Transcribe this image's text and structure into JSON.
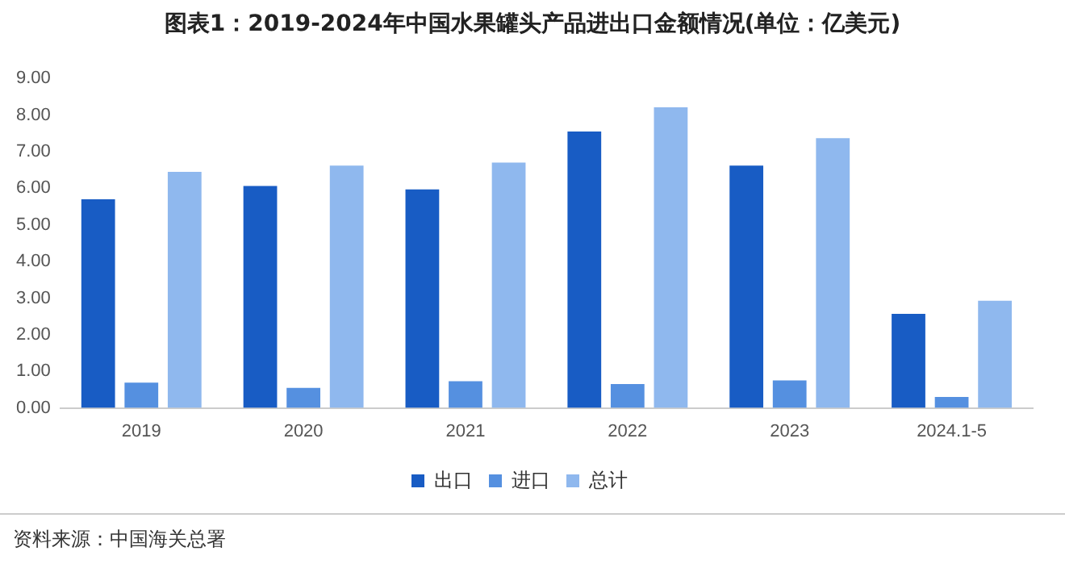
{
  "chart_data": {
    "type": "bar",
    "title": "图表1：2019-2024年中国水果罐头产品进出口金额情况(单位：亿美元)",
    "categories": [
      "2019",
      "2020",
      "2021",
      "2022",
      "2023",
      "2024.1-5"
    ],
    "series": [
      {
        "name": "出口",
        "color": "#185cc4",
        "values": [
          5.7,
          6.06,
          5.97,
          7.55,
          6.62,
          2.57
        ]
      },
      {
        "name": "进口",
        "color": "#5590e0",
        "values": [
          0.69,
          0.55,
          0.73,
          0.65,
          0.75,
          0.3
        ]
      },
      {
        "name": "总计",
        "color": "#8fb8ee",
        "values": [
          6.45,
          6.62,
          6.7,
          8.21,
          7.37,
          2.93
        ]
      }
    ],
    "ylim": [
      0,
      9
    ],
    "yticks": [
      {
        "value": 0,
        "label": "0.00"
      },
      {
        "value": 1,
        "label": "1.00"
      },
      {
        "value": 2,
        "label": "2.00"
      },
      {
        "value": 3,
        "label": "3.00"
      },
      {
        "value": 4,
        "label": "4.00"
      },
      {
        "value": 5,
        "label": "5.00"
      },
      {
        "value": 6,
        "label": "6.00"
      },
      {
        "value": 7,
        "label": "7.00"
      },
      {
        "value": 8,
        "label": "8.00"
      },
      {
        "value": 9,
        "label": "9.00"
      }
    ],
    "grid": false,
    "legend": "bottom",
    "annotations": [
      "资料来源：中国海关总署"
    ]
  }
}
